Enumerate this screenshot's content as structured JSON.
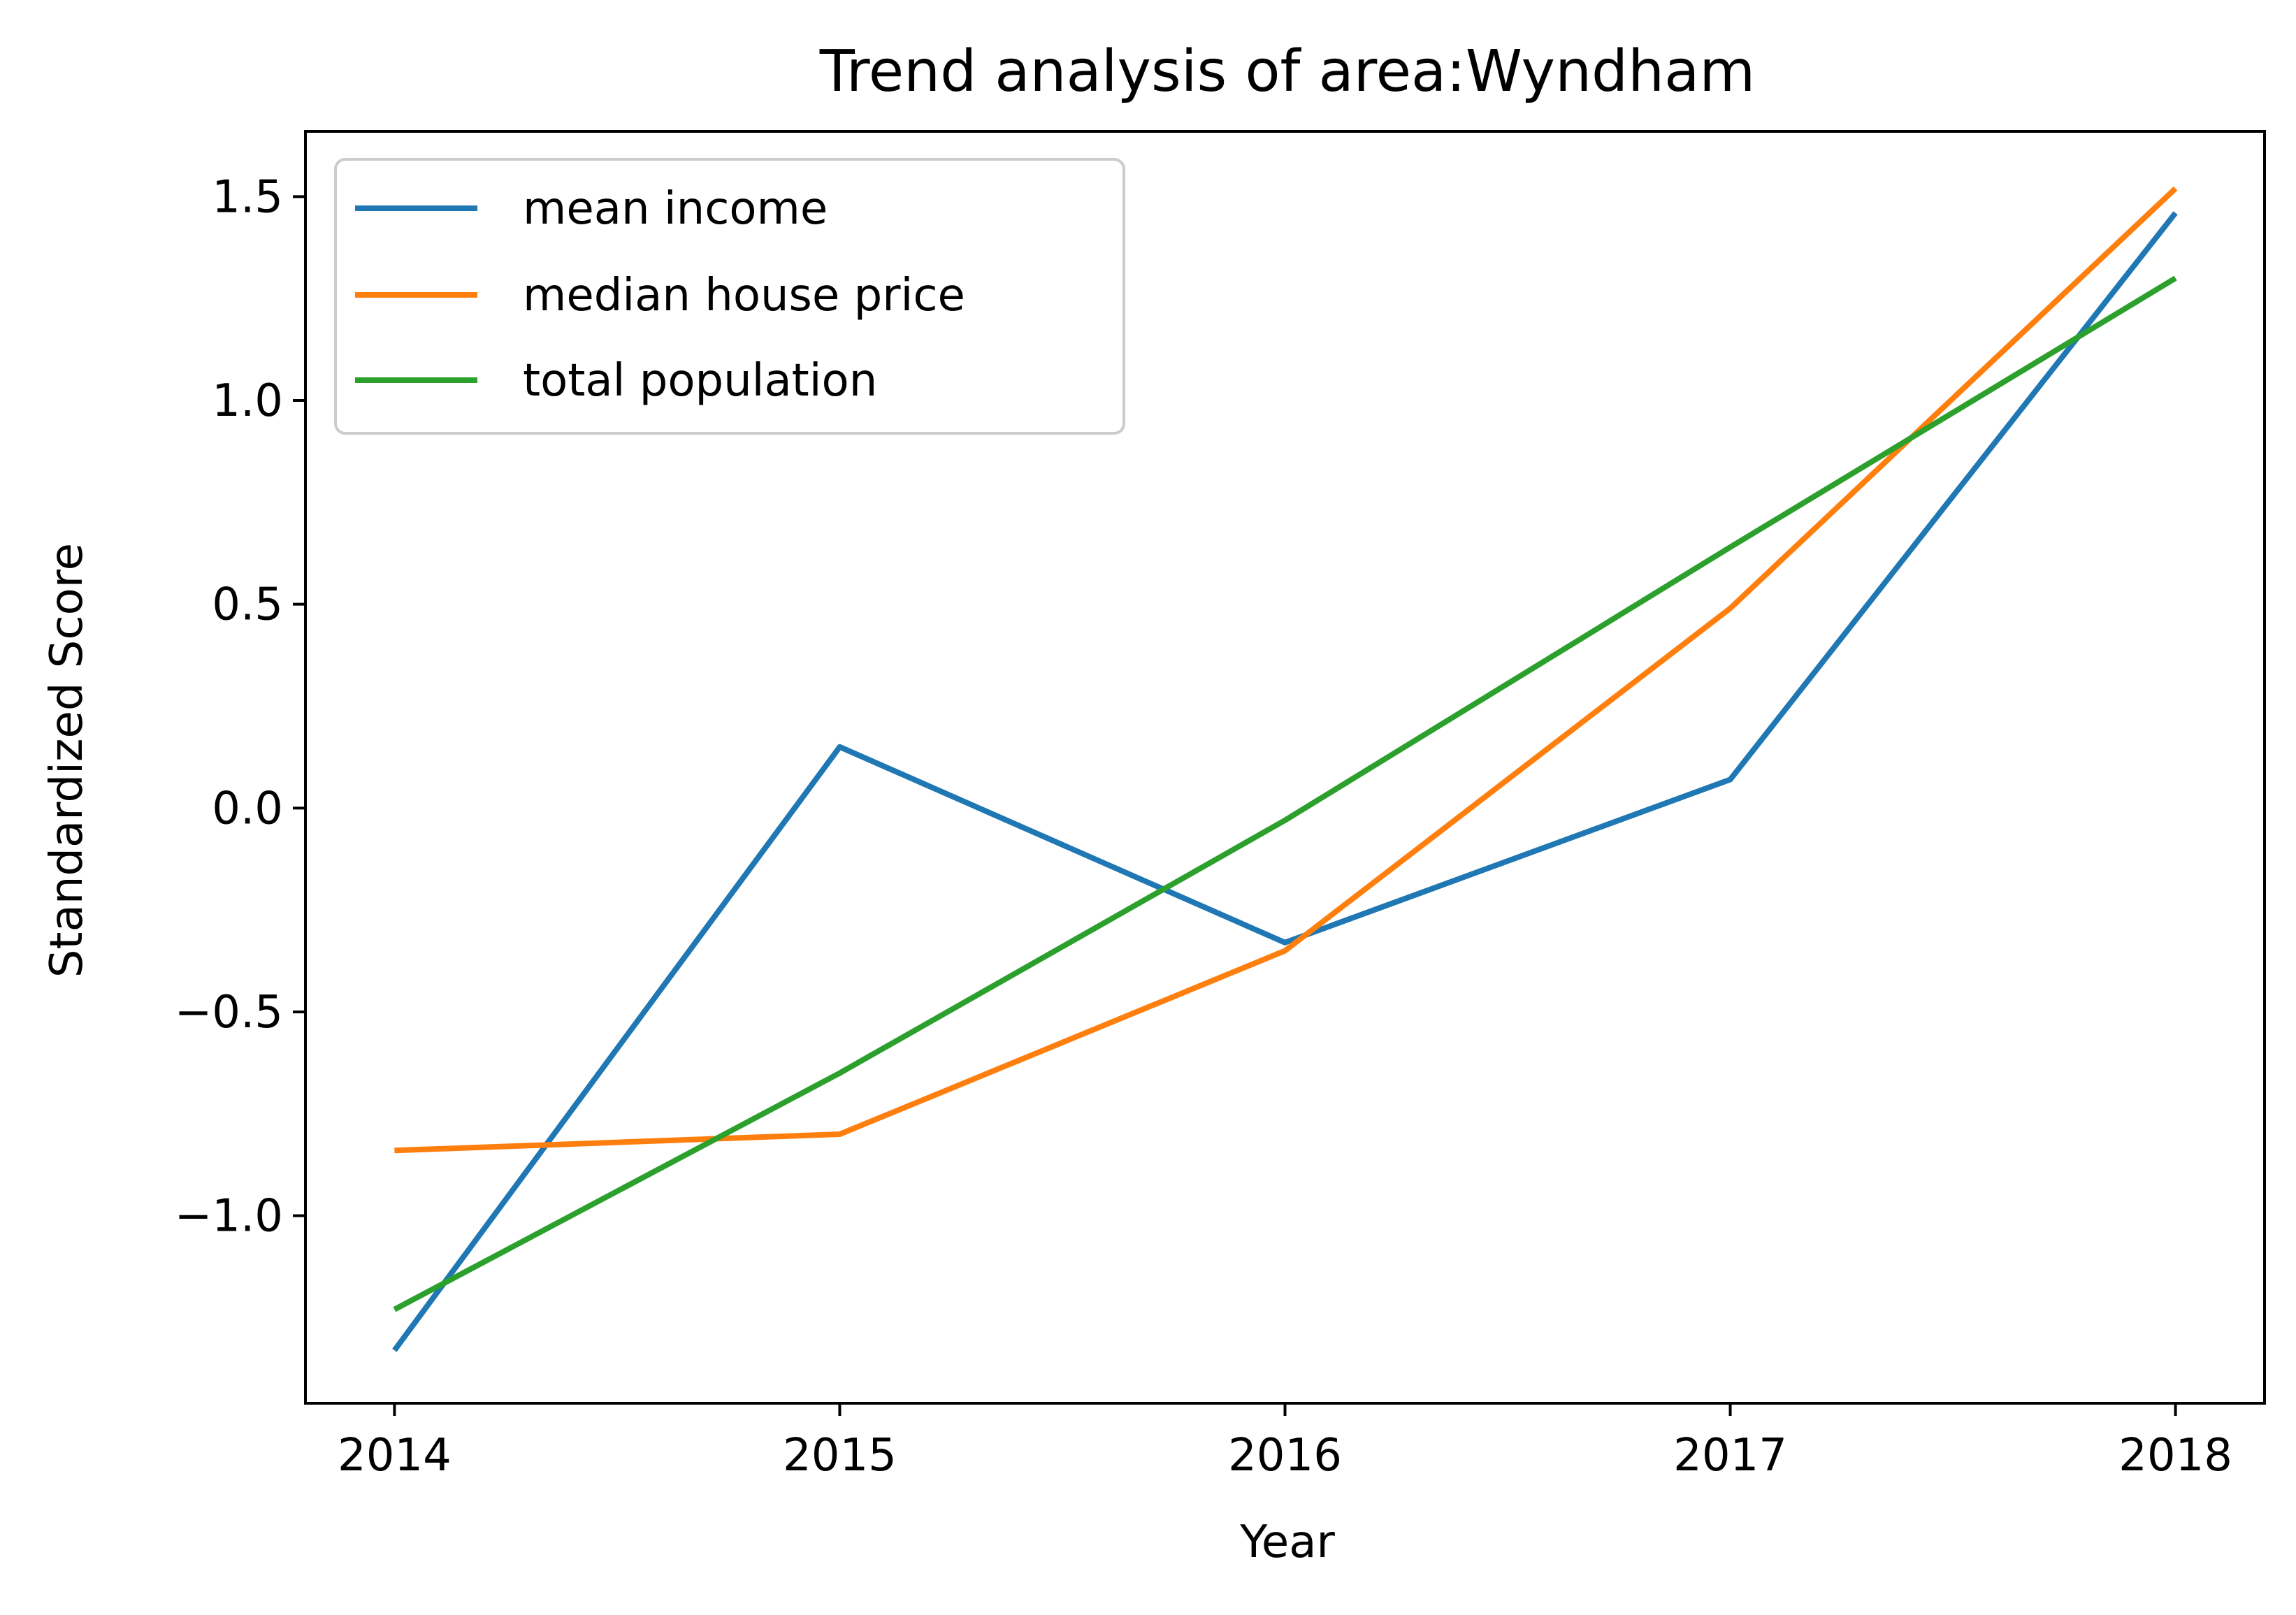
{
  "chart_data": {
    "type": "line",
    "title": "Trend analysis of area:Wyndham",
    "xlabel": "Year",
    "ylabel": "Standardized Score",
    "x": [
      "2014",
      "2015",
      "2016",
      "2017",
      "2018"
    ],
    "xlim": [
      -0.2,
      4.2
    ],
    "ylim": [
      -1.46,
      1.66
    ],
    "yticks": [
      {
        "value": -1.0,
        "label": "−1.0"
      },
      {
        "value": -0.5,
        "label": "−0.5"
      },
      {
        "value": 0.0,
        "label": "0.0"
      },
      {
        "value": 0.5,
        "label": "0.5"
      },
      {
        "value": 1.0,
        "label": "1.0"
      },
      {
        "value": 1.5,
        "label": "1.5"
      }
    ],
    "grid": false,
    "legend_position": "top-left",
    "series": [
      {
        "name": "mean income",
        "color": "#1f77b4",
        "values": [
          -1.33,
          0.15,
          -0.33,
          0.07,
          1.46
        ]
      },
      {
        "name": "median house price",
        "color": "#ff7f0e",
        "values": [
          -0.84,
          -0.8,
          -0.35,
          0.49,
          1.52
        ]
      },
      {
        "name": "total population",
        "color": "#2ca02c",
        "values": [
          -1.23,
          -0.65,
          -0.03,
          0.64,
          1.3
        ]
      }
    ]
  }
}
